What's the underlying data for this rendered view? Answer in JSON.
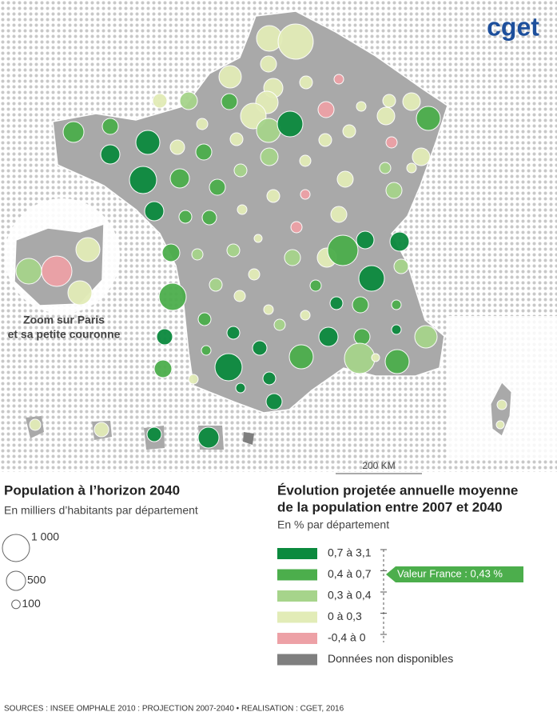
{
  "header": {
    "logo": "cget"
  },
  "map": {
    "zoom_label": [
      "Zoom sur Paris",
      "et sa petite couronne"
    ],
    "scale_label": "200 KM"
  },
  "legend_size": {
    "title": "Population à l’horizon 2040",
    "subtitle": "En milliers d’habitants par département",
    "items": [
      {
        "value": 1000,
        "label": "1 000"
      },
      500,
      100
    ]
  },
  "legend_color": {
    "title": [
      "Évolution projetée annuelle moyenne",
      "de la population entre 2007 et 2040"
    ],
    "subtitle": "En % par département",
    "classes": [
      {
        "label": "0,7 à 3,1",
        "color": "#0b8a3e"
      },
      {
        "label": "0,4 à 0,7",
        "color": "#4cae4c"
      },
      {
        "label": "0,3 à 0,4",
        "color": "#a6d48b"
      },
      {
        "label": "0 à 0,3",
        "color": "#e2ecb7"
      },
      {
        "label": "-0,4 à 0",
        "color": "#eda1a6"
      },
      {
        "label": "Données non disponibles",
        "color": "#7f7f7f"
      }
    ],
    "national_value": "Valeur France : 0,43 %"
  },
  "footer": {
    "sources": "SOURCES : INSEE OMPHALE 2010 : PROJECTION 2007-2040 • REALISATION : CGET, 2016"
  }
}
